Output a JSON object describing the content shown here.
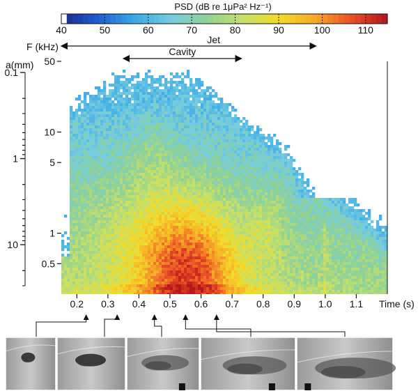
{
  "chart_data": {
    "type": "heatmap",
    "colorbar": {
      "title": "PSD (dB re 1μPa² Hz⁻¹)",
      "ticks": [
        "40",
        "50",
        "60",
        "70",
        "80",
        "90",
        "100",
        "110"
      ],
      "range": [
        40,
        115
      ],
      "colors": [
        "#ffffff",
        "#1a2a8c",
        "#1e5cd0",
        "#39a8e6",
        "#74cce0",
        "#8fd196",
        "#c6e06a",
        "#f2dc2a",
        "#f7a928",
        "#ea5024",
        "#b3161b"
      ]
    },
    "xaxis": {
      "label": "Time (s)",
      "ticks": [
        "0.2",
        "0.3",
        "0.4",
        "0.5",
        "0.6",
        "0.7",
        "0.8",
        "0.9",
        "1.0",
        "1.1"
      ],
      "tick_values": [
        0.2,
        0.3,
        0.4,
        0.5,
        0.6,
        0.7,
        0.8,
        0.9,
        1.0,
        1.1
      ],
      "range": [
        0.15,
        1.2
      ]
    },
    "yaxis_frequency": {
      "label": "F (kHz)",
      "scale": "log",
      "ticks": [
        "50",
        "10",
        "5",
        "1",
        "0.5"
      ],
      "tick_values": [
        50,
        10,
        5,
        1,
        0.5
      ],
      "range": [
        0.25,
        50
      ]
    },
    "yaxis_size": {
      "label": "a(mm)",
      "scale": "log",
      "ticks": [
        "0.1",
        "1",
        "10"
      ],
      "tick_values": [
        0.1,
        1,
        10
      ]
    },
    "annotations": [
      {
        "text": "Jet",
        "x_start": 0.15,
        "x_end": 0.97
      },
      {
        "text": "Cavity",
        "x_start": 0.35,
        "x_end": 0.73
      }
    ],
    "spectrogram_blobs": [
      {
        "t": 0.56,
        "f": 0.35,
        "st": 0.16,
        "sf": 0.55,
        "db": 26
      },
      {
        "t": 0.5,
        "f": 1.2,
        "st": 0.22,
        "sf": 0.55,
        "db": 12
      },
      {
        "t": 0.45,
        "f": 6,
        "st": 0.09,
        "sf": 0.4,
        "db": 6
      },
      {
        "t": 0.82,
        "f": 1.2,
        "st": 0.06,
        "sf": 0.35,
        "db": 7
      }
    ],
    "image_strip_times": [
      0.27,
      0.4,
      0.51,
      0.61,
      0.78
    ],
    "image_strip_pointer_times": [
      0.23,
      0.33,
      0.45,
      0.55,
      0.65
    ]
  }
}
